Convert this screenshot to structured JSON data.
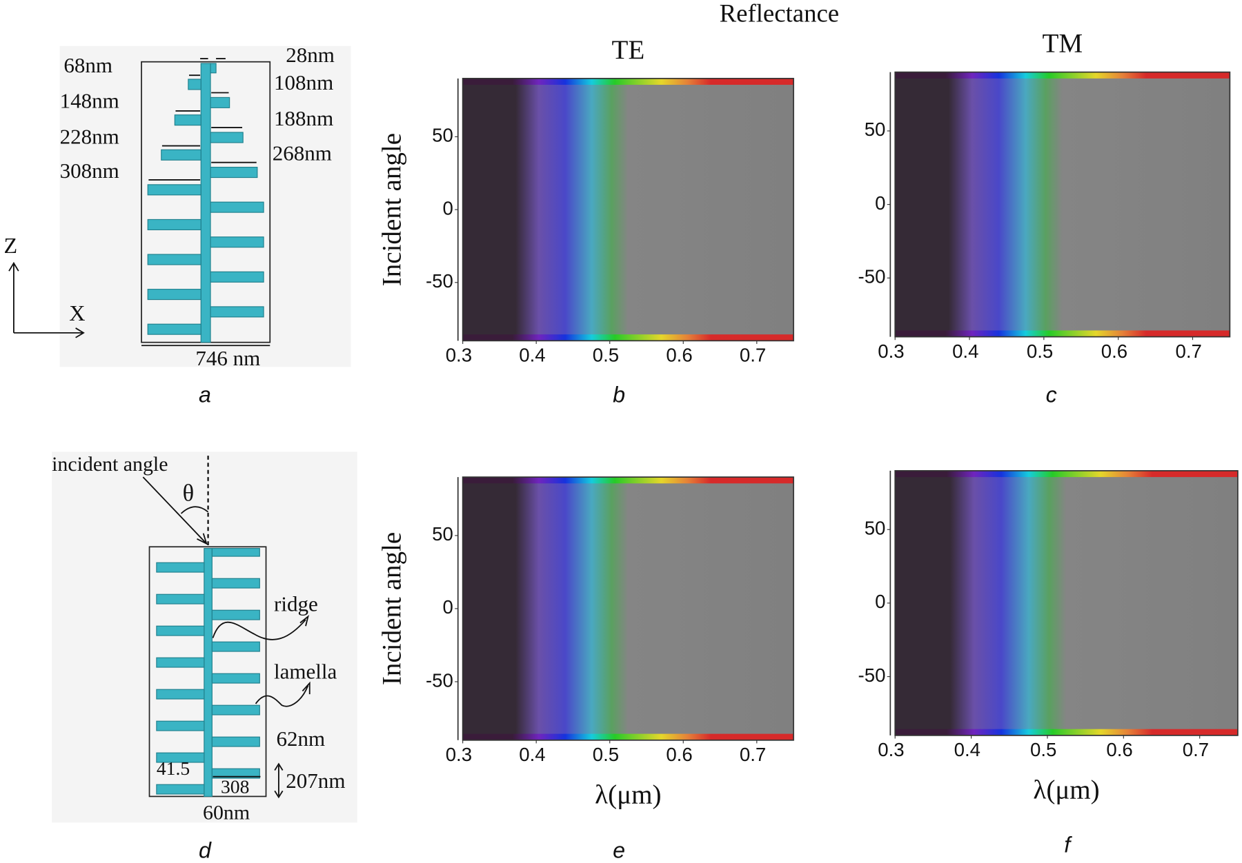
{
  "figure_title": "Reflectance",
  "panel_labels": [
    "a",
    "b",
    "c",
    "d",
    "e",
    "f"
  ],
  "diagram_a": {
    "dimensions": [
      "68nm",
      "28nm",
      "108nm",
      "148nm",
      "188nm",
      "228nm",
      "268nm",
      "308nm"
    ],
    "width": "746 nm",
    "axes": [
      "Z",
      "X"
    ]
  },
  "diagram_d": {
    "incident": "incident angle",
    "theta": "θ",
    "ridge": "ridge",
    "lamella": "lamella",
    "dimensions": [
      "62nm",
      "207nm",
      "41.5",
      "308",
      "60nm"
    ]
  },
  "chart_data": [
    {
      "type": "heatmap",
      "title": "TE",
      "ylabel": "Incident angle",
      "xlim": [
        0.3,
        0.75
      ],
      "xticks": [
        0.3,
        0.4,
        0.5,
        0.6,
        0.7
      ],
      "ylim": [
        -90,
        90
      ],
      "yticks": [
        -50,
        0,
        50
      ]
    },
    {
      "type": "heatmap",
      "title": "TM",
      "xlim": [
        0.3,
        0.75
      ],
      "xticks": [
        0.3,
        0.4,
        0.5,
        0.6,
        0.7
      ],
      "ylim": [
        -90,
        90
      ],
      "yticks": [
        -50,
        0,
        50
      ]
    },
    {
      "type": "heatmap",
      "ylabel": "Incident angle",
      "xlabel": "λ(μm)",
      "xlim": [
        0.3,
        0.75
      ],
      "xticks": [
        0.3,
        0.4,
        0.5,
        0.6,
        0.7
      ],
      "ylim": [
        -90,
        90
      ],
      "yticks": [
        -50,
        0,
        50
      ]
    },
    {
      "type": "heatmap",
      "xlabel": "λ(μm)",
      "xlim": [
        0.3,
        0.75
      ],
      "xticks": [
        0.3,
        0.4,
        0.5,
        0.6,
        0.7
      ],
      "ylim": [
        -90,
        90
      ],
      "yticks": [
        -50,
        0,
        50
      ]
    }
  ]
}
